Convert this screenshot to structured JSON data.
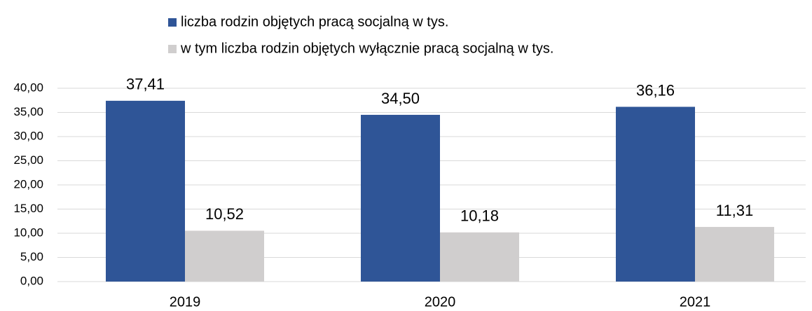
{
  "chart_data": {
    "type": "bar",
    "categories": [
      "2019",
      "2020",
      "2021"
    ],
    "series": [
      {
        "name": "liczba rodzin objętych pracą socjalną w tys.",
        "color": "#2f5597",
        "values": [
          37.41,
          34.5,
          36.16
        ],
        "value_labels": [
          "37,41",
          "34,50",
          "36,16"
        ]
      },
      {
        "name": "w tym liczba rodzin objętych wyłącznie pracą socjalną w tys.",
        "color": "#d0cece",
        "values": [
          10.52,
          10.18,
          11.31
        ],
        "value_labels": [
          "10,52",
          "10,18",
          "11,31"
        ]
      }
    ],
    "ylim": [
      0,
      40
    ],
    "yticks": [
      {
        "value": 0,
        "label": "0,00"
      },
      {
        "value": 5,
        "label": "5,00"
      },
      {
        "value": 10,
        "label": "10,00"
      },
      {
        "value": 15,
        "label": "15,00"
      },
      {
        "value": 20,
        "label": "20,00"
      },
      {
        "value": 25,
        "label": "25,00"
      },
      {
        "value": 30,
        "label": "30,00"
      },
      {
        "value": 35,
        "label": "35,00"
      },
      {
        "value": 40,
        "label": "40,00"
      }
    ],
    "grid": true,
    "legend": "top"
  }
}
